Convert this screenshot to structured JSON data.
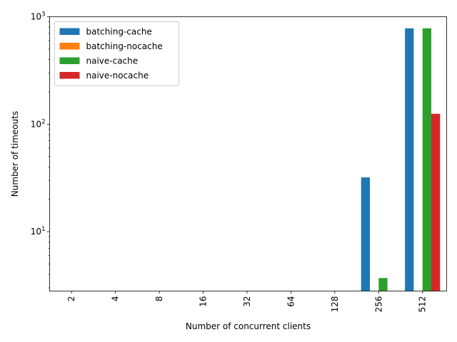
{
  "chart_data": {
    "type": "bar",
    "categories": [
      "2",
      "4",
      "8",
      "16",
      "32",
      "64",
      "128",
      "256",
      "512"
    ],
    "series": [
      {
        "name": "batching-cache",
        "color": "#1f77b4",
        "values": [
          0,
          0,
          0,
          0,
          0,
          0,
          0,
          32,
          780
        ]
      },
      {
        "name": "batching-nocache",
        "color": "#ff7f0e",
        "values": [
          0,
          0,
          0,
          0,
          0,
          0,
          0,
          0,
          0
        ]
      },
      {
        "name": "naive-cache",
        "color": "#2ca02c",
        "values": [
          0,
          0,
          0,
          0,
          0,
          0,
          0,
          3.7,
          780
        ]
      },
      {
        "name": "naive-nocache",
        "color": "#d62728",
        "values": [
          0,
          0,
          0,
          0,
          0,
          0,
          0,
          0,
          125
        ]
      }
    ],
    "xlabel": "Number of concurrent clients",
    "ylabel": "Number of timeouts",
    "yscale": "log",
    "ylim": [
      2.8,
      1000
    ],
    "y_ticks": [
      {
        "value": 10,
        "base": "10",
        "exp": "1"
      },
      {
        "value": 100,
        "base": "10",
        "exp": "2"
      },
      {
        "value": 1000,
        "base": "10",
        "exp": "3"
      }
    ],
    "x_tick_rotation": 90,
    "legend_position": "upper-left",
    "grid": false
  }
}
